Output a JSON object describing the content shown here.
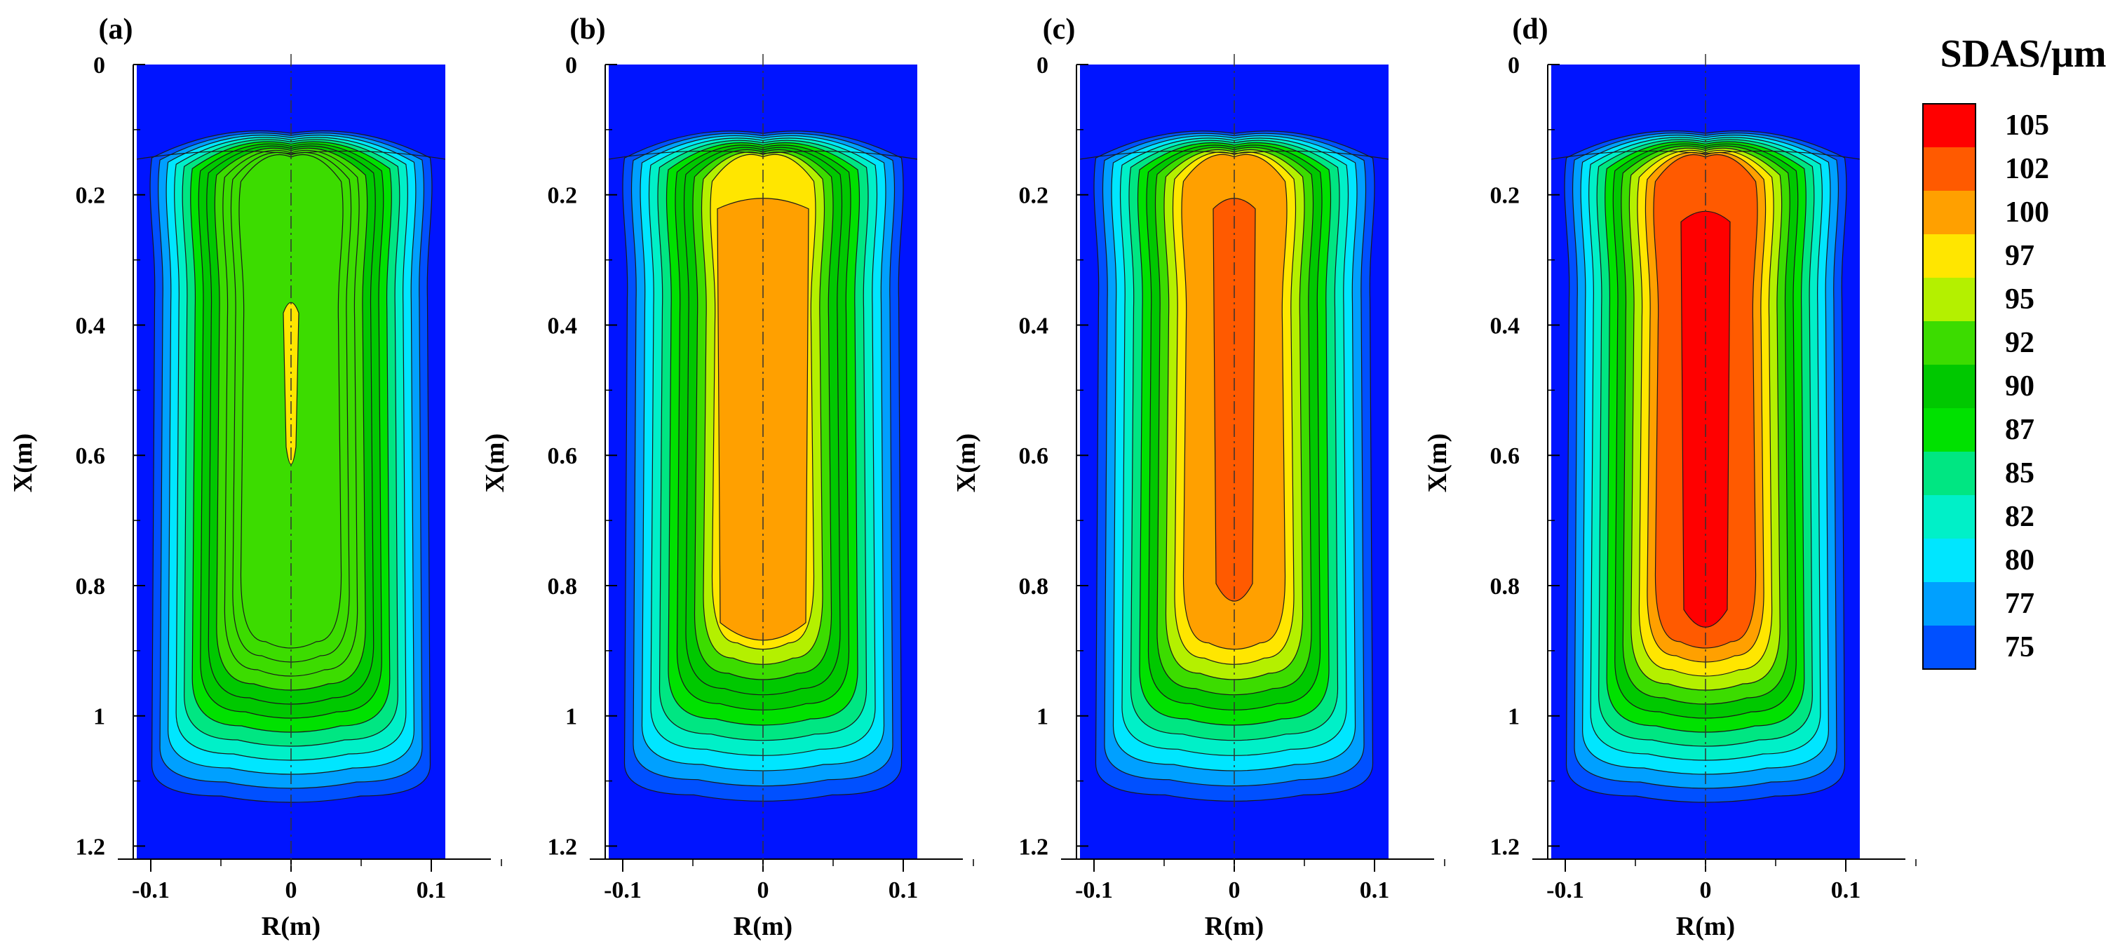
{
  "figure": {
    "legend_title": "SDAS/μm",
    "panels": [
      {
        "label": "(a)",
        "xlabel": "X(m)",
        "rlabel": "R(m)"
      },
      {
        "label": "(b)",
        "xlabel": "X(m)",
        "rlabel": "R(m)"
      },
      {
        "label": "(c)",
        "xlabel": "X(m)",
        "rlabel": "R(m)"
      },
      {
        "label": "(d)",
        "xlabel": "X(m)",
        "rlabel": "R(m)"
      }
    ]
  },
  "chart_data": {
    "type": "heatmap",
    "title": "SDAS/μm",
    "xlabel": "R(m)",
    "ylabel": "X(m)",
    "r_range": [
      -0.11,
      0.11
    ],
    "x_range": [
      0,
      1.22
    ],
    "x_ticks": [
      "0",
      "0.2",
      "0.4",
      "0.6",
      "0.8",
      "1",
      "1.2"
    ],
    "x_tick_values": [
      0,
      0.2,
      0.4,
      0.6,
      0.8,
      1.0,
      1.2
    ],
    "r_ticks": [
      "-0.1",
      "0",
      "0.1"
    ],
    "r_tick_values": [
      -0.1,
      0,
      0.1
    ],
    "legend_levels": [
      {
        "label": "105",
        "color": "#ff0000"
      },
      {
        "label": "102",
        "color": "#ff5a00"
      },
      {
        "label": "100",
        "color": "#ffa000"
      },
      {
        "label": "97",
        "color": "#ffe600"
      },
      {
        "label": "95",
        "color": "#b4f000"
      },
      {
        "label": "92",
        "color": "#3cdc00"
      },
      {
        "label": "90",
        "color": "#00c800"
      },
      {
        "label": "87",
        "color": "#00e100"
      },
      {
        "label": "85",
        "color": "#00e682"
      },
      {
        "label": "82",
        "color": "#00f0c8"
      },
      {
        "label": "80",
        "color": "#00e6ff"
      },
      {
        "label": "77",
        "color": "#00a0ff"
      },
      {
        "label": "75",
        "color": "#0050ff"
      }
    ],
    "background_color": "#0014ff",
    "panels": [
      {
        "id": "a",
        "core_level": "97",
        "shell_bands": [
          "75",
          "77",
          "80",
          "82",
          "85",
          "87",
          "90",
          "90",
          "92",
          "92",
          "92",
          "92"
        ],
        "core_x_range": [
          0.36,
          0.63
        ]
      },
      {
        "id": "b",
        "core_level": "100",
        "shell_bands": [
          "75",
          "77",
          "80",
          "82",
          "85",
          "87",
          "90",
          "90",
          "92",
          "95",
          "97"
        ],
        "core_x_range": [
          0.2,
          0.9
        ]
      },
      {
        "id": "c",
        "core_level": "102",
        "shell_bands": [
          "75",
          "77",
          "80",
          "82",
          "85",
          "87",
          "90",
          "92",
          "95",
          "97",
          "100"
        ],
        "core_x_range": [
          0.2,
          0.84
        ]
      },
      {
        "id": "d",
        "core_level": "105",
        "shell_bands": [
          "75",
          "77",
          "80",
          "82",
          "85",
          "87",
          "90",
          "92",
          "95",
          "97",
          "100",
          "102"
        ],
        "core_x_range": [
          0.22,
          0.88
        ]
      }
    ]
  }
}
